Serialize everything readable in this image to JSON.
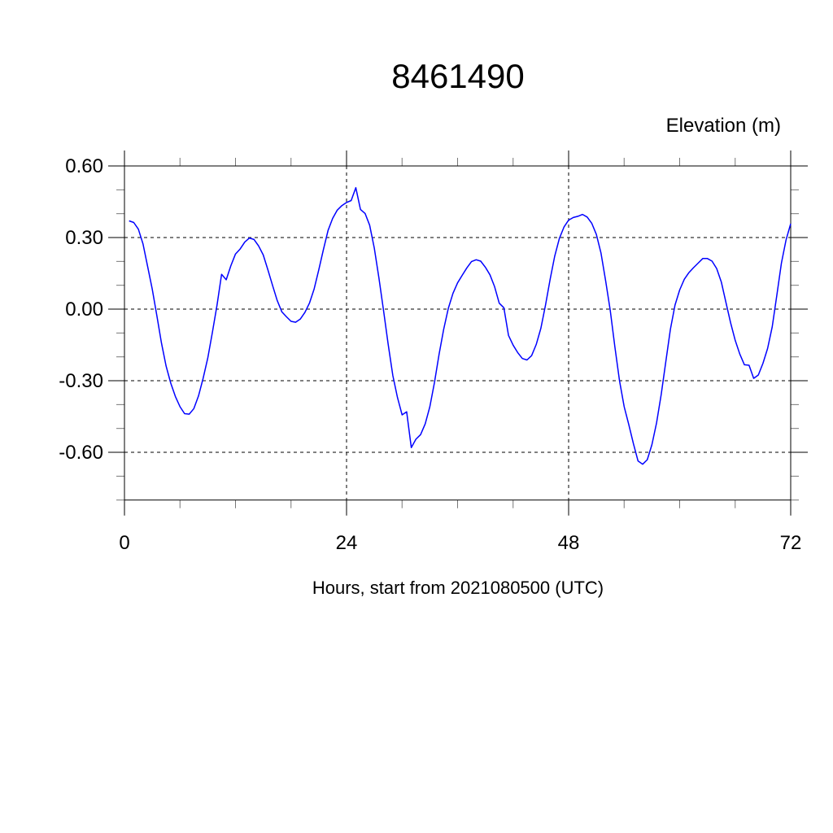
{
  "chart_data": {
    "type": "line",
    "title": "8461490",
    "ylabel": "Elevation (m)",
    "xlabel": "Hours, start from 2021080500 (UTC)",
    "xlim": [
      0,
      72
    ],
    "ylim": [
      -0.8,
      0.6
    ],
    "xticks": [
      0,
      24,
      48,
      72
    ],
    "xtick_labels": [
      "0",
      "24",
      "48",
      "72"
    ],
    "xminor_step": 6,
    "yticks": [
      0.6,
      0.3,
      0.0,
      -0.3,
      -0.6
    ],
    "ytick_labels": [
      "0.60",
      "0.30",
      "0.00",
      "-0.30",
      "-0.60"
    ],
    "yminor_step": 0.1,
    "grid": true,
    "line_color": "#0000ff",
    "series": [
      {
        "x": [
          0.5,
          1,
          1.5,
          2,
          2.5,
          3,
          3.5,
          4,
          4.5,
          5,
          5.5,
          6,
          6.5,
          7,
          7.5,
          8,
          8.5,
          9,
          9.5,
          10,
          10.5,
          11,
          11.5,
          12,
          12.5,
          13,
          13.5,
          14,
          14.5,
          15,
          15.5,
          16,
          16.5,
          17,
          17.5,
          18,
          18.5,
          19,
          19.5,
          20,
          20.5,
          21,
          21.5,
          22,
          22.5,
          23,
          23.5,
          24,
          24.5,
          25,
          25.5,
          26,
          26.5,
          27,
          27.5,
          28,
          28.5,
          29,
          29.5,
          30,
          30.5,
          31,
          31.5,
          32,
          32.5,
          33,
          33.5,
          34,
          34.5,
          35,
          35.5,
          36,
          36.5,
          37,
          37.5,
          38,
          38.5,
          39,
          39.5,
          40,
          40.5,
          41,
          41.5,
          42,
          42.5,
          43,
          43.5,
          44,
          44.5,
          45,
          45.5,
          46,
          46.5,
          47,
          47.5,
          48,
          48.5,
          49,
          49.5,
          50,
          50.5,
          51,
          51.5,
          52,
          52.5,
          53,
          53.5,
          54,
          54.5,
          55,
          55.5,
          56,
          56.5,
          57,
          57.5,
          58,
          58.5,
          59,
          59.5,
          60,
          60.5,
          61,
          61.5,
          62,
          62.5,
          63,
          63.5,
          64,
          64.5,
          65,
          65.5,
          66,
          66.5,
          67,
          67.5,
          68,
          68.5,
          69,
          69.5,
          70,
          70.5,
          71,
          71.5,
          72
        ],
        "y": [
          0.37,
          0.363,
          0.335,
          0.273,
          0.18,
          0.085,
          -0.027,
          -0.142,
          -0.239,
          -0.31,
          -0.366,
          -0.409,
          -0.438,
          -0.44,
          -0.417,
          -0.364,
          -0.29,
          -0.205,
          -0.097,
          0.017,
          0.146,
          0.123,
          0.182,
          0.231,
          0.252,
          0.281,
          0.298,
          0.292,
          0.265,
          0.227,
          0.165,
          0.1,
          0.037,
          -0.011,
          -0.032,
          -0.051,
          -0.055,
          -0.042,
          -0.014,
          0.026,
          0.085,
          0.165,
          0.25,
          0.33,
          0.38,
          0.415,
          0.434,
          0.447,
          0.455,
          0.509,
          0.418,
          0.401,
          0.352,
          0.256,
          0.131,
          -0.006,
          -0.148,
          -0.278,
          -0.37,
          -0.443,
          -0.43,
          -0.58,
          -0.545,
          -0.526,
          -0.481,
          -0.409,
          -0.307,
          -0.188,
          -0.085,
          0.003,
          0.066,
          0.11,
          0.142,
          0.173,
          0.199,
          0.207,
          0.201,
          0.176,
          0.144,
          0.094,
          0.025,
          0.006,
          -0.11,
          -0.151,
          -0.182,
          -0.207,
          -0.213,
          -0.195,
          -0.148,
          -0.08,
          0.017,
          0.125,
          0.222,
          0.296,
          0.344,
          0.373,
          0.384,
          0.389,
          0.397,
          0.386,
          0.36,
          0.313,
          0.235,
          0.119,
          -0.006,
          -0.159,
          -0.301,
          -0.409,
          -0.483,
          -0.563,
          -0.636,
          -0.65,
          -0.631,
          -0.568,
          -0.477,
          -0.358,
          -0.222,
          -0.085,
          0.017,
          0.08,
          0.125,
          0.153,
          0.174,
          0.193,
          0.212,
          0.212,
          0.201,
          0.17,
          0.114,
          0.028,
          -0.057,
          -0.131,
          -0.188,
          -0.233,
          -0.235,
          -0.29,
          -0.276,
          -0.227,
          -0.165,
          -0.074,
          0.057,
          0.193,
          0.29,
          0.358
        ]
      }
    ]
  }
}
